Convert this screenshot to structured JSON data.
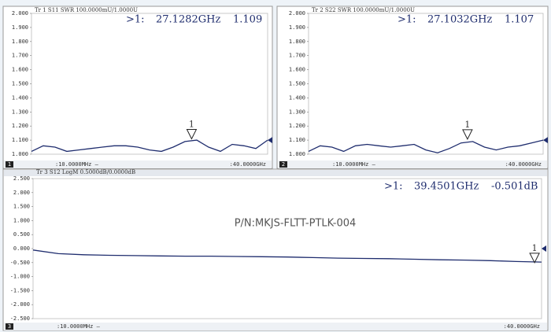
{
  "chart_data": [
    {
      "type": "line",
      "header": "Tr 1  S11 SWR 100.0000mU/1.0000U",
      "channel": "1",
      "color": "#1f2d6e",
      "x_start_label": ":10.0000MHz —",
      "x_stop_label": ":40.0000GHz",
      "xlim": [
        0.01,
        40
      ],
      "x": [
        0.01,
        2,
        4,
        6,
        8,
        10,
        12,
        14,
        16,
        18,
        20,
        22,
        24,
        26,
        28,
        30,
        32,
        34,
        36,
        38,
        40
      ],
      "values": [
        1.02,
        1.06,
        1.05,
        1.02,
        1.03,
        1.04,
        1.05,
        1.06,
        1.06,
        1.05,
        1.03,
        1.02,
        1.05,
        1.09,
        1.1,
        1.05,
        1.02,
        1.07,
        1.06,
        1.04,
        1.1
      ],
      "ylim": [
        1.0,
        2.0
      ],
      "yticks": [
        {
          "value": 1.0,
          "label": "1.000"
        },
        {
          "value": 1.1,
          "label": "1.100"
        },
        {
          "value": 1.2,
          "label": "1.200"
        },
        {
          "value": 1.3,
          "label": "1.300"
        },
        {
          "value": 1.4,
          "label": "1.400"
        },
        {
          "value": 1.5,
          "label": "1.500"
        },
        {
          "value": 1.6,
          "label": "1.600"
        },
        {
          "value": 1.7,
          "label": "1.700"
        },
        {
          "value": 1.8,
          "label": "1.800"
        },
        {
          "value": 1.9,
          "label": "1.900"
        },
        {
          "value": 2.0,
          "label": "2.000"
        }
      ],
      "marker": {
        "name": "1",
        "label": ">1:",
        "x_label": "27.1282GHz",
        "y_label": "1.109",
        "x": 27.1282,
        "y": 1.109
      }
    },
    {
      "type": "line",
      "header": "Tr 2  S22 SWR 100.0000mU/1.0000U",
      "channel": "2",
      "color": "#1f2d6e",
      "x_start_label": ":10.0000MHz —",
      "x_stop_label": ":40.0000GHz",
      "xlim": [
        0.01,
        40
      ],
      "x": [
        0.01,
        2,
        4,
        6,
        8,
        10,
        12,
        14,
        16,
        18,
        20,
        22,
        24,
        26,
        28,
        30,
        32,
        34,
        36,
        38,
        40
      ],
      "values": [
        1.02,
        1.06,
        1.05,
        1.02,
        1.06,
        1.07,
        1.06,
        1.05,
        1.06,
        1.07,
        1.03,
        1.01,
        1.04,
        1.08,
        1.09,
        1.05,
        1.03,
        1.05,
        1.06,
        1.08,
        1.1
      ],
      "ylim": [
        1.0,
        2.0
      ],
      "yticks": [
        {
          "value": 1.0,
          "label": "1.000"
        },
        {
          "value": 1.1,
          "label": "1.100"
        },
        {
          "value": 1.2,
          "label": "1.200"
        },
        {
          "value": 1.3,
          "label": "1.300"
        },
        {
          "value": 1.4,
          "label": "1.400"
        },
        {
          "value": 1.5,
          "label": "1.500"
        },
        {
          "value": 1.6,
          "label": "1.600"
        },
        {
          "value": 1.7,
          "label": "1.700"
        },
        {
          "value": 1.8,
          "label": "1.800"
        },
        {
          "value": 1.9,
          "label": "1.900"
        },
        {
          "value": 2.0,
          "label": "2.000"
        }
      ],
      "marker": {
        "name": "1",
        "label": ">1:",
        "x_label": "27.1032GHz",
        "y_label": "1.107",
        "x": 27.1032,
        "y": 1.107
      }
    },
    {
      "type": "line",
      "header": "Tr 3  S12 LogM 0.5000dB/0.0000dB",
      "channel": "3",
      "color": "#1f2d6e",
      "x_start_label": ":10.0000MHz —",
      "x_stop_label": ":40.0000GHz",
      "annotation": "P/N:MKJS-FLTT-PTLK-004",
      "xlim": [
        0.01,
        40
      ],
      "x": [
        0.01,
        2,
        4,
        6,
        8,
        10,
        12,
        14,
        16,
        18,
        20,
        22,
        24,
        26,
        28,
        30,
        32,
        34,
        36,
        38,
        40
      ],
      "values": [
        -0.05,
        -0.18,
        -0.22,
        -0.24,
        -0.25,
        -0.26,
        -0.27,
        -0.27,
        -0.28,
        -0.29,
        -0.3,
        -0.32,
        -0.34,
        -0.35,
        -0.36,
        -0.38,
        -0.4,
        -0.41,
        -0.43,
        -0.46,
        -0.48
      ],
      "ylim": [
        -2.5,
        2.5
      ],
      "yticks": [
        {
          "value": 2.5,
          "label": "2.500"
        },
        {
          "value": 2.0,
          "label": "2.000"
        },
        {
          "value": 1.5,
          "label": "1.500"
        },
        {
          "value": 1.0,
          "label": "1.000"
        },
        {
          "value": 0.5,
          "label": "0.500"
        },
        {
          "value": 0.0,
          "label": "0.000"
        },
        {
          "value": -0.5,
          "label": "-0.500"
        },
        {
          "value": -1.0,
          "label": "-1.000"
        },
        {
          "value": -1.5,
          "label": "-1.500"
        },
        {
          "value": -2.0,
          "label": "-2.000"
        },
        {
          "value": -2.5,
          "label": "-2.500"
        }
      ],
      "marker": {
        "name": "1",
        "label": ">1:",
        "x_label": "39.4501GHz",
        "y_label": "-0.501dB",
        "x": 39.4501,
        "y": -0.501
      }
    }
  ]
}
